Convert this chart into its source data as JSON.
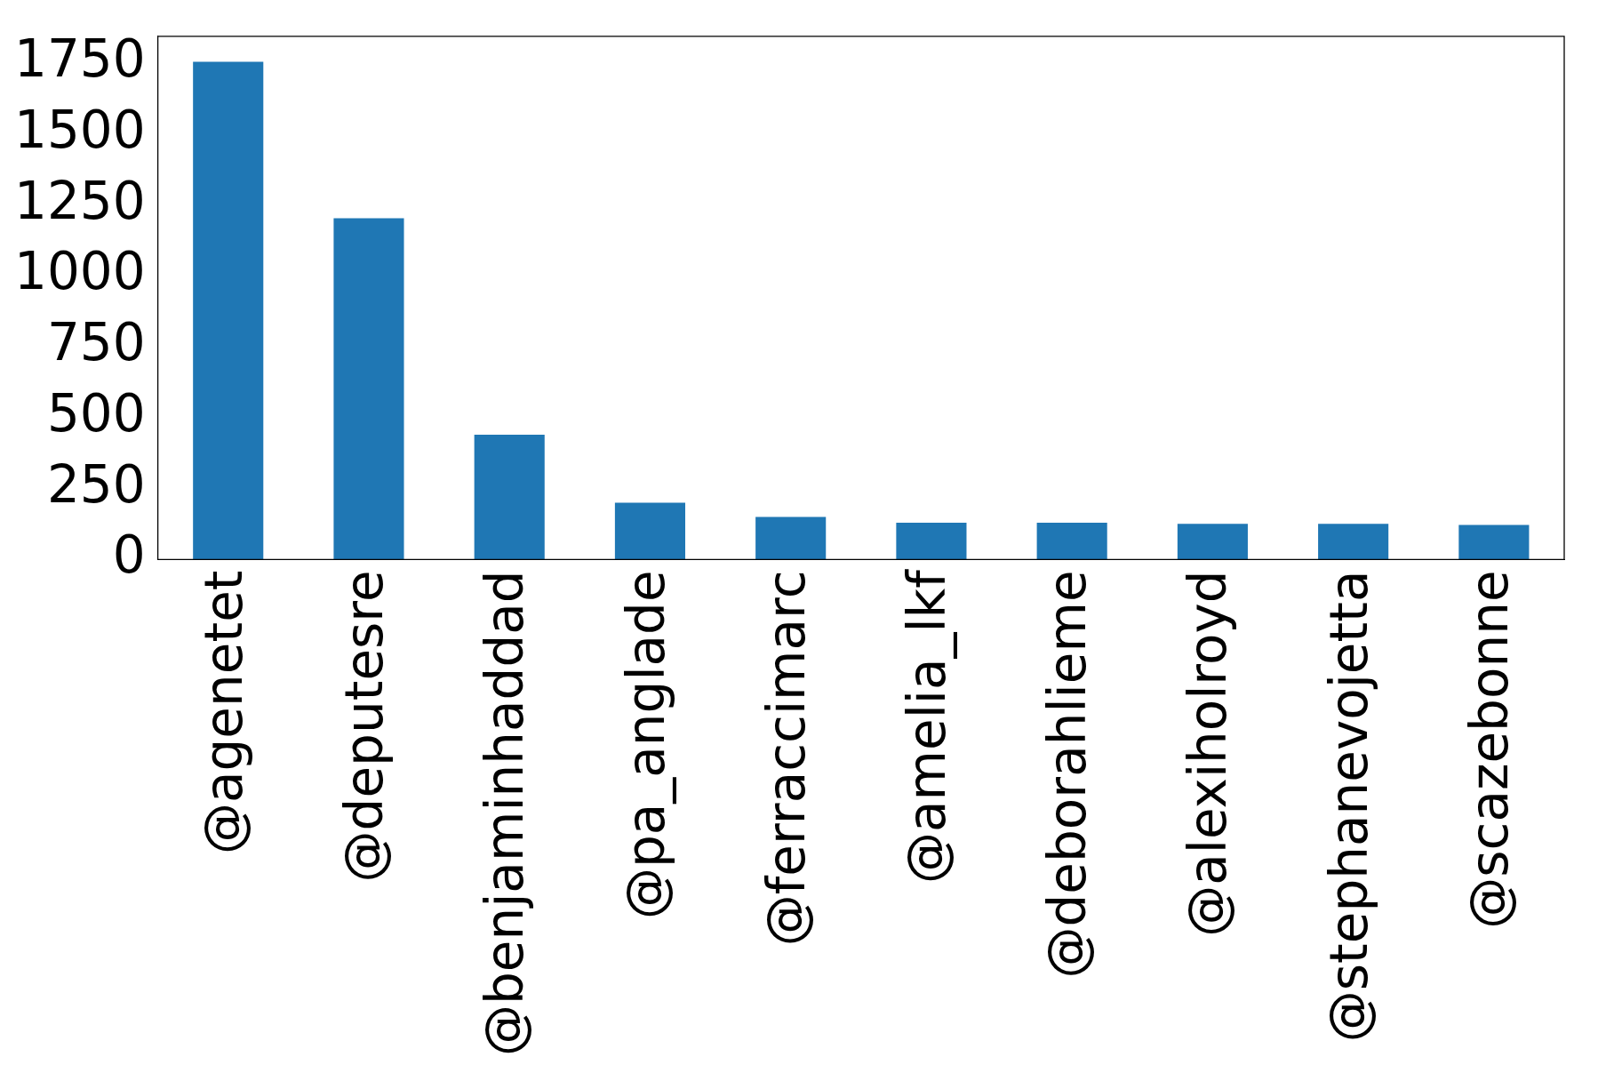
{
  "chart_data": {
    "type": "bar",
    "categories": [
      "@agenetet",
      "@deputesre",
      "@benjaminhaddad",
      "@pa_anglade",
      "@ferraccimarc",
      "@amelia_lkf",
      "@deborahlieme",
      "@alexiholroyd",
      "@stephanevojetta",
      "@scazebonne"
    ],
    "values": [
      1755,
      1203,
      440,
      200,
      150,
      130,
      130,
      126,
      126,
      122
    ],
    "color": "#1f77b4",
    "ylim": [
      0,
      1845
    ],
    "yticks": [
      0,
      250,
      500,
      750,
      1000,
      1250,
      1500,
      1750
    ],
    "grid": false,
    "legend": false
  }
}
